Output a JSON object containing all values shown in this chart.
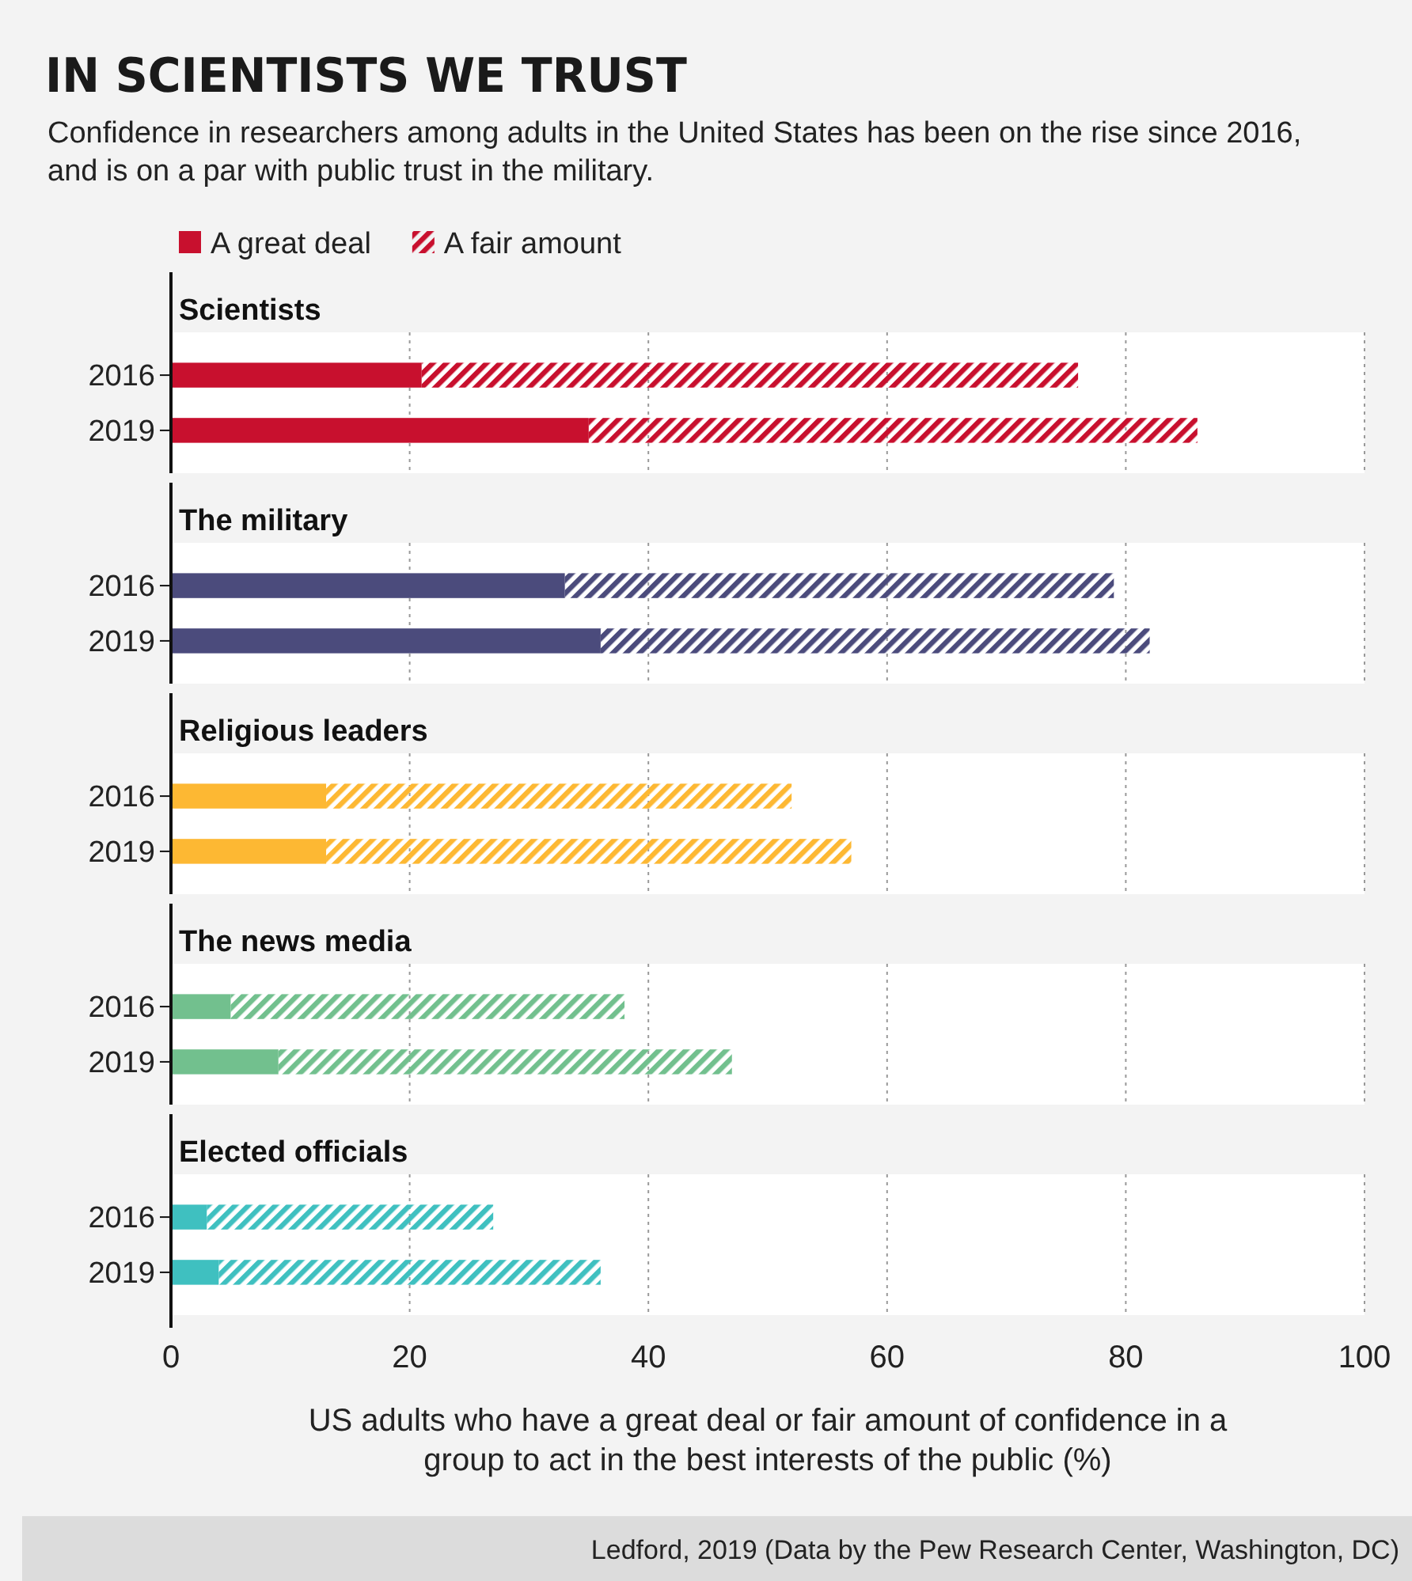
{
  "chart_data": [
    {
      "type": "bar",
      "orientation": "horizontal",
      "stacked": true,
      "title": "IN SCIENTISTS WE TRUST",
      "subtitle": "Confidence in researchers among adults in the United States has been on the rise since 2016, and is on a par with public trust in the military.",
      "legend": "top left",
      "grid": "x",
      "tick_labels": "y",
      "xlim": [
        0,
        100
      ],
      "xticks": [
        0,
        20,
        40,
        60,
        80,
        100
      ],
      "categories": [
        "2016",
        "2019"
      ],
      "annotations": [
        "Scientists"
      ],
      "series": [
        {
          "name": "A great deal",
          "color": "#c8102e",
          "values": [
            21,
            35
          ]
        },
        {
          "name": "A fair amount",
          "color": "#c8102e",
          "values": [
            55,
            51
          ]
        }
      ]
    },
    {
      "type": "bar",
      "orientation": "horizontal",
      "stacked": true,
      "grid": "x",
      "tick_labels": "y",
      "xlim": [
        0,
        100
      ],
      "xticks": [
        0,
        20,
        40,
        60,
        80,
        100
      ],
      "categories": [
        "2016",
        "2019"
      ],
      "annotations": [
        "The military"
      ],
      "series": [
        {
          "color": "#4b4b7c",
          "values": [
            33,
            36
          ]
        },
        {
          "color": "#4b4b7c",
          "values": [
            46,
            46
          ]
        }
      ]
    },
    {
      "type": "bar",
      "orientation": "horizontal",
      "stacked": true,
      "grid": "x",
      "tick_labels": "y",
      "xlim": [
        0,
        100
      ],
      "xticks": [
        0,
        20,
        40,
        60,
        80,
        100
      ],
      "categories": [
        "2016",
        "2019"
      ],
      "annotations": [
        "Religious leaders"
      ],
      "series": [
        {
          "color": "#fdb833",
          "values": [
            13,
            13
          ]
        },
        {
          "color": "#fdb833",
          "values": [
            39,
            44
          ]
        }
      ]
    },
    {
      "type": "bar",
      "orientation": "horizontal",
      "stacked": true,
      "grid": "x",
      "tick_labels": "y",
      "xlim": [
        0,
        100
      ],
      "xticks": [
        0,
        20,
        40,
        60,
        80,
        100
      ],
      "categories": [
        "2016",
        "2019"
      ],
      "annotations": [
        "The news media"
      ],
      "series": [
        {
          "color": "#72c08e",
          "values": [
            5,
            9
          ]
        },
        {
          "color": "#72c08e",
          "values": [
            33,
            38
          ]
        }
      ]
    },
    {
      "type": "bar",
      "orientation": "horizontal",
      "stacked": true,
      "grid": "x",
      "xlim": [
        0,
        100
      ],
      "xticks": [
        0,
        20,
        40,
        60,
        80,
        100
      ],
      "categories": [
        "2016",
        "2019"
      ],
      "xlabel": "US adults who have a great deal or fair amount of confidence in a group to act in the best interests of the public (%)",
      "annotations": [
        "Elected officials",
        "Ledford, 2019 (Data by the Pew Research Center, Washington, DC)"
      ],
      "series": [
        {
          "color": "#3fc0c0",
          "values": [
            3,
            4
          ]
        },
        {
          "color": "#3fc0c0",
          "values": [
            24,
            32
          ]
        }
      ]
    }
  ]
}
